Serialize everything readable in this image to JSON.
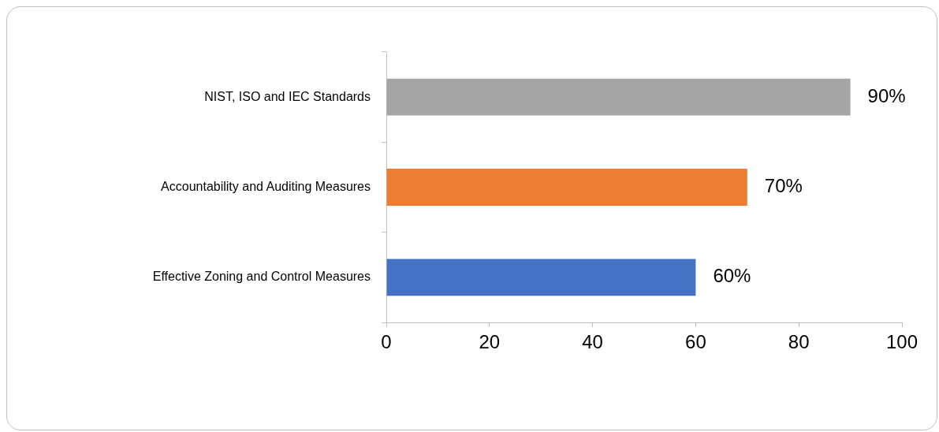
{
  "chart_data": {
    "type": "bar",
    "orientation": "horizontal",
    "categories": [
      "NIST, ISO and IEC Standards",
      "Accountability and Auditing Measures",
      "Effective Zoning and Control Measures"
    ],
    "values": [
      90,
      70,
      60
    ],
    "colors": [
      "#a5a5a5",
      "#ed7d31",
      "#4472c4"
    ],
    "value_labels": [
      "90%",
      "70%",
      "60%"
    ],
    "xlim": [
      0,
      100
    ],
    "xticks": [
      0,
      20,
      40,
      60,
      80,
      100
    ],
    "grid": false,
    "legend": false
  }
}
